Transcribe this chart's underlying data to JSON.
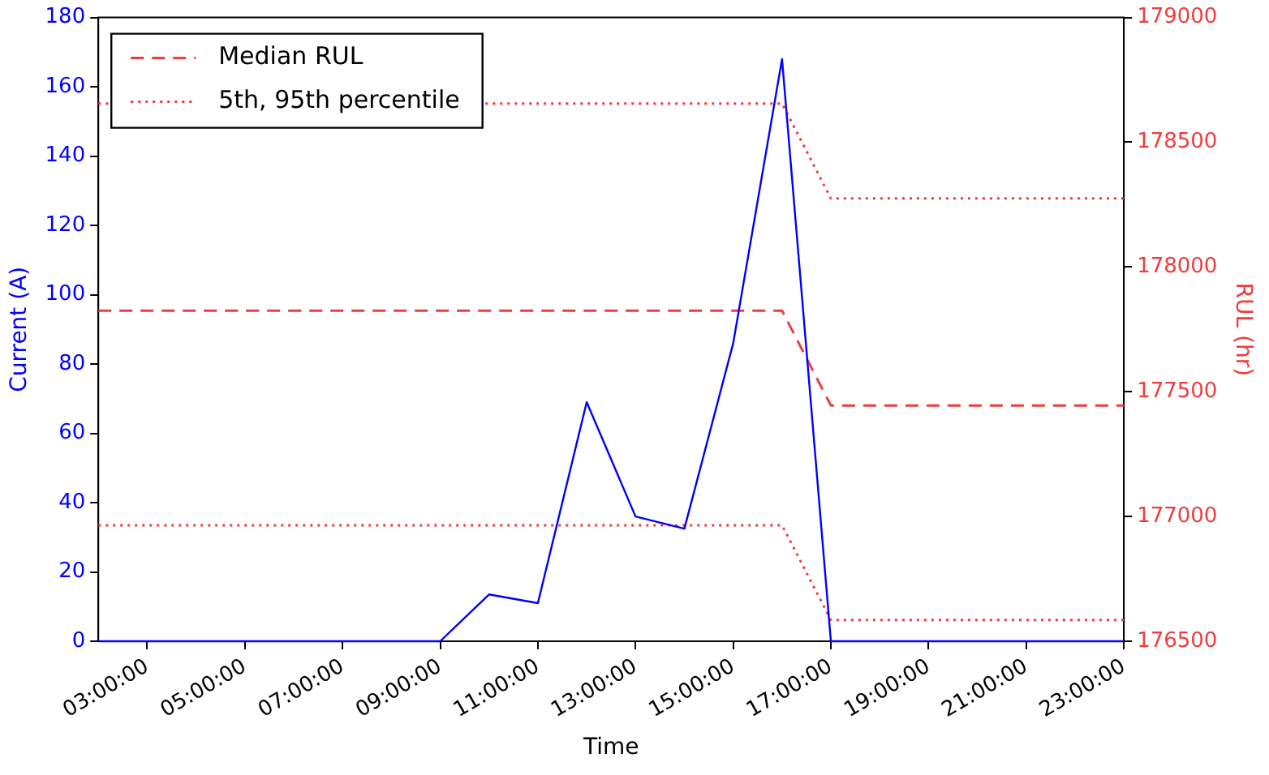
{
  "chart_data": {
    "type": "line",
    "xlabel": "Time",
    "ylabel": "Current (A)",
    "y2label": "RUL (hr)",
    "legend": "top left",
    "marker": "none",
    "grid": false,
    "xlim": [
      2,
      23
    ],
    "xticks": [
      {
        "value": 3,
        "label": "03:00:00"
      },
      {
        "value": 5,
        "label": "05:00:00"
      },
      {
        "value": 7,
        "label": "07:00:00"
      },
      {
        "value": 9,
        "label": "09:00:00"
      },
      {
        "value": 11,
        "label": "11:00:00"
      },
      {
        "value": 13,
        "label": "13:00:00"
      },
      {
        "value": 15,
        "label": "15:00:00"
      },
      {
        "value": 17,
        "label": "17:00:00"
      },
      {
        "value": 19,
        "label": "19:00:00"
      },
      {
        "value": 21,
        "label": "21:00:00"
      },
      {
        "value": 23,
        "label": "23:00:00"
      }
    ],
    "ylim": [
      0,
      180
    ],
    "yticks": [
      0,
      20,
      40,
      60,
      80,
      100,
      120,
      140,
      160,
      180
    ],
    "y2lim": [
      176500,
      179000
    ],
    "y2ticks": [
      176500,
      177000,
      177500,
      178000,
      178500,
      179000
    ],
    "series": [
      {
        "color": "#0000ff",
        "line_style": "solid",
        "x": [
          2,
          3,
          4,
          5,
          6,
          7,
          8,
          9,
          10,
          11,
          12,
          13,
          14,
          15,
          16,
          17,
          18,
          19,
          20,
          21,
          22,
          23
        ],
        "values": [
          0,
          0,
          0,
          0,
          0,
          0,
          0,
          0,
          13.5,
          11,
          69,
          36,
          32.5,
          86,
          168,
          0,
          0,
          0,
          0,
          0,
          0,
          0
        ]
      },
      {
        "name": "Median RUL",
        "color": "#f03c3c",
        "line_style": "dashed",
        "axis": "y2",
        "x": [
          2,
          16,
          17,
          23
        ],
        "values": [
          177825,
          177825,
          177445,
          177445
        ]
      },
      {
        "name": "5th, 95th percentile",
        "color": "#f03c3c",
        "line_style": "dotted",
        "axis": "y2",
        "x": [
          2,
          16,
          17,
          23
        ],
        "values": [
          178655,
          178655,
          178275,
          178275
        ]
      },
      {
        "color": "#f03c3c",
        "line_style": "dotted",
        "axis": "y2",
        "x": [
          2,
          16,
          17,
          23
        ],
        "values": [
          176965,
          176965,
          176585,
          176585
        ]
      }
    ]
  }
}
